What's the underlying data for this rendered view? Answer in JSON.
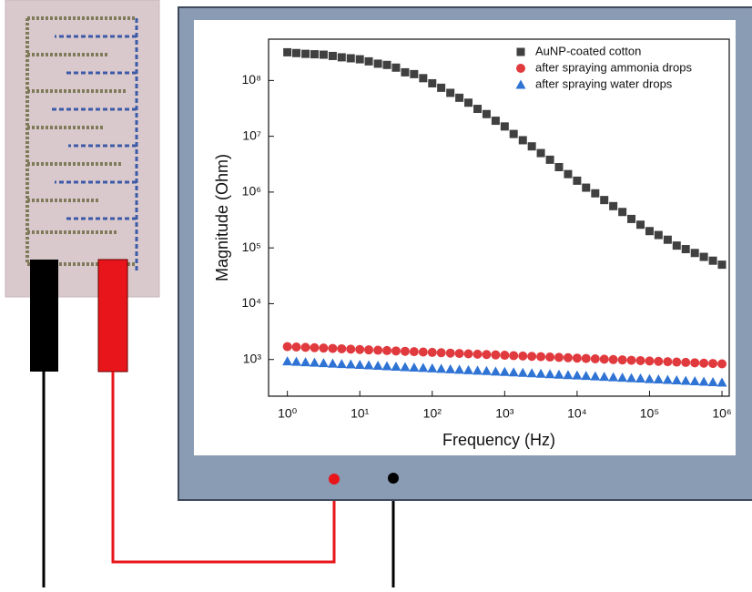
{
  "chart_data": {
    "type": "scatter",
    "x_label": "Frequency (Hz)",
    "y_label": "Magnitude (Ohm)",
    "xscale": "log",
    "yscale": "log",
    "xlim": [
      0.55,
      1260000
    ],
    "ylim": [
      220,
      550000000
    ],
    "xticks": [
      {
        "value": 1,
        "label": "10⁰"
      },
      {
        "value": 10,
        "label": "10¹"
      },
      {
        "value": 100,
        "label": "10²"
      },
      {
        "value": 1000,
        "label": "10³"
      },
      {
        "value": 10000,
        "label": "10⁴"
      },
      {
        "value": 100000,
        "label": "10⁵"
      },
      {
        "value": 1000000,
        "label": "10⁶"
      }
    ],
    "yticks": [
      {
        "value": 1000,
        "label": "10³"
      },
      {
        "value": 10000,
        "label": "10⁴"
      },
      {
        "value": 100000,
        "label": "10⁵"
      },
      {
        "value": 1000000,
        "label": "10⁶"
      },
      {
        "value": 10000000,
        "label": "10⁷"
      },
      {
        "value": 100000000,
        "label": "10⁸"
      }
    ],
    "legend": "upper right",
    "x": [
      1,
      1.33,
      1.78,
      2.37,
      3.16,
      4.22,
      5.62,
      7.5,
      10,
      13.3,
      17.8,
      23.7,
      31.6,
      42.2,
      56.2,
      75,
      100,
      133,
      178,
      237,
      316,
      422,
      562,
      750,
      1000,
      1330,
      1780,
      2370,
      3160,
      4220,
      5620,
      7500,
      10000,
      13300,
      17800,
      23700,
      31600,
      42200,
      56200,
      75000,
      100000,
      133000,
      178000,
      237000,
      316000,
      422000,
      562000,
      750000,
      1000000
    ],
    "series": [
      {
        "name": "AuNP-coated cotton",
        "color": "#404040",
        "marker": "square",
        "values": [
          320000000,
          310000000,
          300000000,
          295000000,
          290000000,
          275000000,
          260000000,
          250000000,
          240000000,
          220000000,
          200000000,
          190000000,
          170000000,
          140000000,
          130000000,
          110000000,
          89000000,
          74000000,
          60000000,
          49000000,
          40000000,
          31000000,
          25000000,
          19000000,
          15000000,
          11000000,
          8500000,
          6600000,
          5000000,
          3800000,
          2800000,
          2100000,
          1600000,
          1200000,
          950000,
          720000,
          560000,
          440000,
          330000,
          260000,
          200000,
          170000,
          140000,
          110000,
          95000,
          81000,
          69000,
          59000,
          50000
        ]
      },
      {
        "name": "after spraying ammonia drops",
        "color": "#e03a3e",
        "marker": "circle",
        "values": [
          1700,
          1675,
          1650,
          1626,
          1602,
          1578,
          1555,
          1532,
          1510,
          1487,
          1466,
          1444,
          1423,
          1402,
          1381,
          1361,
          1341,
          1321,
          1302,
          1283,
          1264,
          1245,
          1227,
          1209,
          1191,
          1174,
          1156,
          1139,
          1123,
          1106,
          1090,
          1074,
          1058,
          1043,
          1027,
          1012,
          997,
          983,
          968,
          954,
          940,
          926,
          913,
          899,
          886,
          873,
          860,
          848,
          835
        ]
      },
      {
        "name": "after spraying water drops",
        "color": "#2f73d4",
        "marker": "triangle",
        "values": [
          930,
          913,
          897,
          880,
          864,
          849,
          833,
          818,
          804,
          789,
          775,
          761,
          747,
          734,
          720,
          707,
          695,
          682,
          670,
          658,
          646,
          634,
          623,
          611,
          600,
          589,
          579,
          568,
          558,
          548,
          538,
          528,
          519,
          509,
          500,
          491,
          482,
          474,
          465,
          457,
          448,
          440,
          432,
          424,
          417,
          409,
          402,
          394,
          387
        ]
      }
    ]
  }
}
